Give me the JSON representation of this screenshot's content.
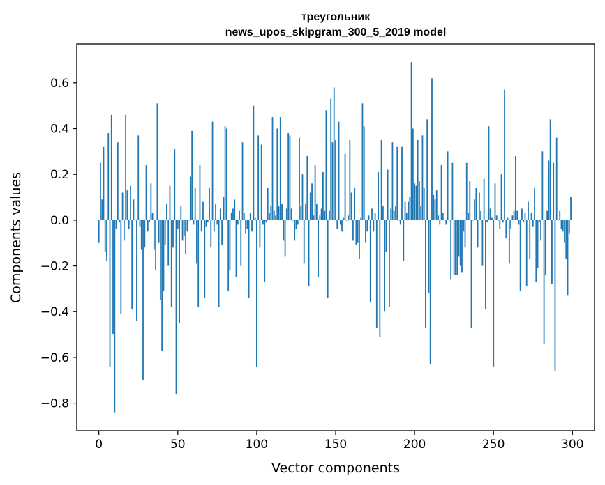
{
  "chart_data": {
    "type": "bar",
    "title": "треугольник",
    "subtitle": "news_upos_skipgram_300_5_2019 model",
    "xlabel": "Vector components",
    "ylabel": "Components values",
    "xlim": [
      -14,
      314
    ],
    "ylim": [
      -0.92,
      0.77
    ],
    "xticks": [
      0,
      50,
      100,
      150,
      200,
      250,
      300
    ],
    "xtick_labels": [
      "0",
      "50",
      "100",
      "150",
      "200",
      "250",
      "300"
    ],
    "yticks": [
      -0.8,
      -0.6,
      -0.4,
      -0.2,
      0.0,
      0.2,
      0.4,
      0.6
    ],
    "ytick_labels": [
      "−0.8",
      "−0.6",
      "−0.4",
      "−0.2",
      "0.0",
      "0.2",
      "0.4",
      "0.6"
    ],
    "bar_color": "#1f77b4",
    "grid": false,
    "x": [
      0,
      1,
      2,
      3,
      4,
      5,
      6,
      7,
      8,
      9,
      10,
      11,
      12,
      13,
      14,
      15,
      16,
      17,
      18,
      19,
      20,
      21,
      22,
      23,
      24,
      25,
      26,
      27,
      28,
      29,
      30,
      31,
      32,
      33,
      34,
      35,
      36,
      37,
      38,
      39,
      40,
      41,
      42,
      43,
      44,
      45,
      46,
      47,
      48,
      49,
      50,
      51,
      52,
      53,
      54,
      55,
      56,
      57,
      58,
      59,
      60,
      61,
      62,
      63,
      64,
      65,
      66,
      67,
      68,
      69,
      70,
      71,
      72,
      73,
      74,
      75,
      76,
      77,
      78,
      79,
      80,
      81,
      82,
      83,
      84,
      85,
      86,
      87,
      88,
      89,
      90,
      91,
      92,
      93,
      94,
      95,
      96,
      97,
      98,
      99,
      100,
      101,
      102,
      103,
      104,
      105,
      106,
      107,
      108,
      109,
      110,
      111,
      112,
      113,
      114,
      115,
      116,
      117,
      118,
      119,
      120,
      121,
      122,
      123,
      124,
      125,
      126,
      127,
      128,
      129,
      130,
      131,
      132,
      133,
      134,
      135,
      136,
      137,
      138,
      139,
      140,
      141,
      142,
      143,
      144,
      145,
      146,
      147,
      148,
      149,
      150,
      151,
      152,
      153,
      154,
      155,
      156,
      157,
      158,
      159,
      160,
      161,
      162,
      163,
      164,
      165,
      166,
      167,
      168,
      169,
      170,
      171,
      172,
      173,
      174,
      175,
      176,
      177,
      178,
      179,
      180,
      181,
      182,
      183,
      184,
      185,
      186,
      187,
      188,
      189,
      190,
      191,
      192,
      193,
      194,
      195,
      196,
      197,
      198,
      199,
      200,
      201,
      202,
      203,
      204,
      205,
      206,
      207,
      208,
      209,
      210,
      211,
      212,
      213,
      214,
      215,
      216,
      217,
      218,
      219,
      220,
      221,
      222,
      223,
      224,
      225,
      226,
      227,
      228,
      229,
      230,
      231,
      232,
      233,
      234,
      235,
      236,
      237,
      238,
      239,
      240,
      241,
      242,
      243,
      244,
      245,
      246,
      247,
      248,
      249,
      250,
      251,
      252,
      253,
      254,
      255,
      256,
      257,
      258,
      259,
      260,
      261,
      262,
      263,
      264,
      265,
      266,
      267,
      268,
      269,
      270,
      271,
      272,
      273,
      274,
      275,
      276,
      277,
      278,
      279,
      280,
      281,
      282,
      283,
      284,
      285,
      286,
      287,
      288,
      289,
      290,
      291,
      292,
      293,
      294,
      295,
      296,
      297,
      298,
      299
    ],
    "values": [
      -0.1,
      0.25,
      0.09,
      0.32,
      -0.14,
      -0.18,
      0.38,
      -0.64,
      0.46,
      -0.5,
      -0.84,
      -0.04,
      0.34,
      -0.01,
      -0.41,
      0.12,
      -0.09,
      0.46,
      0.13,
      -0.04,
      0.15,
      -0.39,
      0.09,
      0.0,
      -0.44,
      0.37,
      -0.03,
      -0.13,
      -0.7,
      -0.12,
      0.24,
      -0.05,
      -0.01,
      0.16,
      0.03,
      -0.13,
      -0.22,
      0.51,
      -0.1,
      -0.35,
      -0.57,
      -0.31,
      -0.11,
      0.07,
      -0.2,
      0.15,
      -0.38,
      -0.12,
      0.31,
      -0.76,
      -0.04,
      -0.45,
      0.06,
      -0.09,
      -0.07,
      -0.15,
      -0.05,
      0.0,
      0.19,
      0.39,
      -0.02,
      0.14,
      -0.19,
      -0.38,
      0.24,
      -0.05,
      0.08,
      -0.34,
      -0.03,
      -0.01,
      0.14,
      -0.12,
      0.43,
      -0.05,
      0.07,
      -0.02,
      -0.38,
      0.05,
      -0.11,
      0.1,
      0.41,
      0.4,
      -0.31,
      -0.22,
      0.03,
      0.05,
      0.09,
      -0.25,
      -0.02,
      0.04,
      -0.2,
      0.34,
      0.03,
      -0.06,
      -0.04,
      -0.34,
      0.03,
      -0.05,
      0.5,
      0.01,
      -0.64,
      0.37,
      -0.12,
      0.33,
      -0.02,
      -0.27,
      -0.01,
      0.14,
      0.03,
      0.06,
      0.45,
      0.04,
      0.02,
      0.4,
      0.06,
      0.45,
      0.07,
      -0.09,
      -0.16,
      0.05,
      0.38,
      0.37,
      0.05,
      0.0,
      -0.09,
      -0.04,
      -0.02,
      0.36,
      0.06,
      0.2,
      -0.19,
      0.07,
      0.28,
      -0.29,
      0.12,
      0.16,
      0.02,
      0.24,
      0.07,
      -0.25,
      0.02,
      0.05,
      0.21,
      0.04,
      0.48,
      -0.34,
      0.04,
      0.53,
      0.34,
      0.58,
      0.35,
      -0.04,
      0.43,
      -0.02,
      -0.05,
      0.01,
      0.29,
      0.0,
      0.02,
      0.35,
      0.12,
      -0.09,
      0.14,
      -0.11,
      -0.1,
      -0.17,
      0.01,
      0.51,
      0.41,
      -0.1,
      -0.05,
      0.02,
      -0.36,
      0.05,
      -0.05,
      0.03,
      -0.47,
      0.21,
      -0.51,
      0.35,
      0.06,
      -0.4,
      -0.14,
      0.22,
      -0.38,
      0.05,
      0.34,
      0.04,
      0.06,
      0.32,
      0.0,
      -0.02,
      0.32,
      -0.18,
      0.08,
      0.03,
      0.08,
      0.1,
      0.69,
      0.4,
      0.16,
      0.15,
      0.35,
      0.17,
      0.06,
      0.37,
      0.14,
      -0.47,
      0.44,
      -0.32,
      -0.63,
      0.62,
      0.11,
      0.09,
      0.13,
      0.02,
      -0.02,
      0.24,
      0.03,
      0.0,
      -0.02,
      0.3,
      0.0,
      -0.26,
      0.25,
      -0.24,
      -0.24,
      -0.24,
      -0.16,
      -0.2,
      -0.23,
      -0.05,
      -0.12,
      0.25,
      0.03,
      0.17,
      -0.47,
      0.0,
      0.09,
      0.14,
      -0.12,
      0.12,
      0.04,
      -0.2,
      0.18,
      -0.39,
      -0.01,
      0.41,
      0.05,
      0.01,
      -0.64,
      0.16,
      0.02,
      0.0,
      -0.04,
      0.2,
      -0.01,
      0.57,
      -0.08,
      0.01,
      -0.19,
      -0.04,
      0.02,
      0.04,
      0.28,
      0.04,
      -0.02,
      -0.31,
      0.05,
      -0.01,
      0.03,
      -0.29,
      0.08,
      -0.17,
      0.03,
      -0.03,
      0.14,
      -0.27,
      -0.21,
      -0.01,
      -0.09,
      0.3,
      -0.54,
      -0.24,
      0.04,
      0.26,
      0.44,
      -0.28,
      0.25,
      -0.66,
      0.36,
      0.0,
      0.04,
      -0.04,
      -0.05,
      -0.1,
      -0.17,
      -0.33,
      -0.06,
      0.1
    ]
  }
}
